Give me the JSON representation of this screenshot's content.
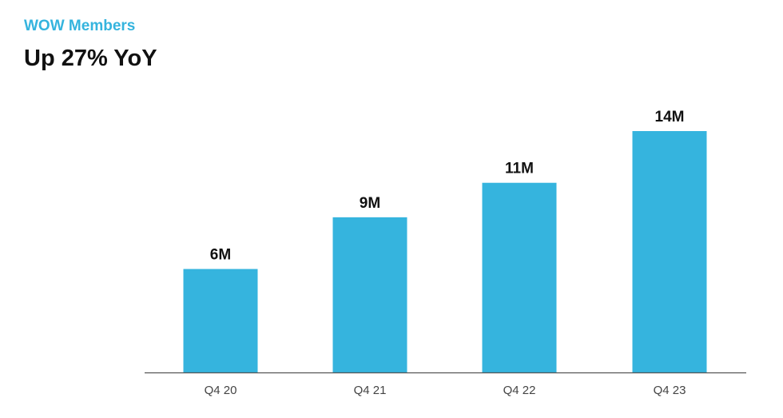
{
  "header": {
    "subtitle": "WOW Members",
    "title": "Up 27% YoY"
  },
  "colors": {
    "bar": "#35b4de",
    "axis": "#555555",
    "subtitle": "#35b4de",
    "title": "#111111"
  },
  "chart_data": {
    "type": "bar",
    "categories": [
      "Q4 20",
      "Q4 21",
      "Q4 22",
      "Q4 23"
    ],
    "values": [
      6,
      9,
      11,
      14
    ],
    "data_labels": [
      "6M",
      "9M",
      "11M",
      "14M"
    ],
    "title": "Up 27% YoY",
    "subtitle": "WOW Members",
    "xlabel": "",
    "ylabel": "",
    "ylim": [
      0,
      14
    ],
    "grid": false,
    "legend": "none"
  }
}
